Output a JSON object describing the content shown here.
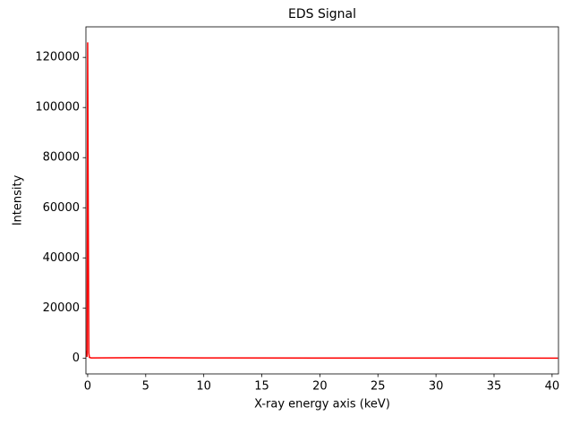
{
  "chart_data": {
    "type": "line",
    "title": "EDS Signal",
    "x_label": "X-ray energy axis (keV)",
    "y_label": "Intensity",
    "x": [
      -0.1,
      -0.05,
      0,
      0.05,
      0.1,
      0.15,
      0.3,
      5,
      10,
      20,
      30,
      40.5
    ],
    "series": [
      {
        "name": "EDS Signal",
        "color": "#ff0000",
        "values": [
          3000,
          500,
          126000,
          60000,
          2000,
          300,
          100,
          150,
          80,
          40,
          20,
          10
        ]
      }
    ],
    "xlim": [
      -0.15,
      40.55
    ],
    "ylim": [
      -6300,
      132200
    ],
    "xticks": [
      0,
      5,
      10,
      15,
      20,
      25,
      30,
      35,
      40
    ],
    "yticks": [
      0,
      20000,
      40000,
      60000,
      80000,
      100000,
      120000
    ],
    "grid": false
  }
}
